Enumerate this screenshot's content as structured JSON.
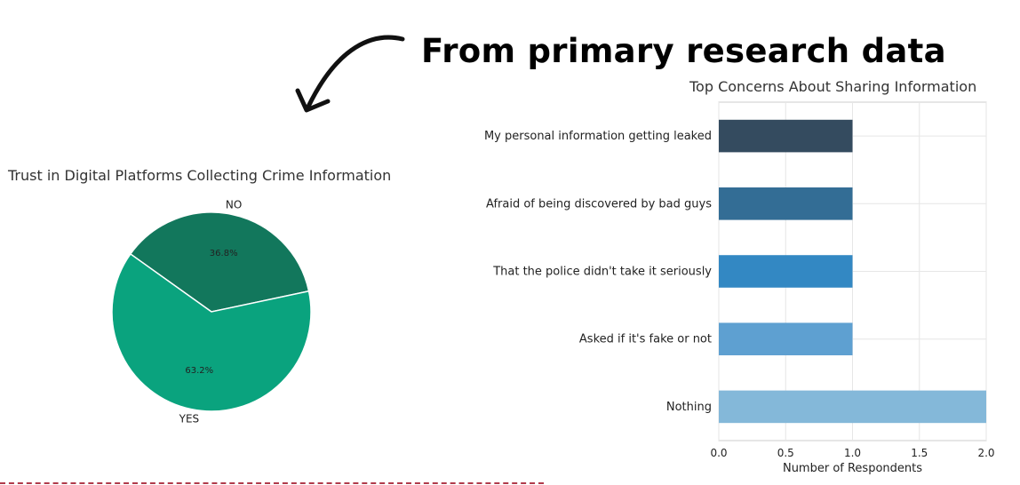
{
  "headline": "From primary research data",
  "colors": {
    "pie_no": "#12775c",
    "pie_yes": "#0aa37e",
    "bars": [
      "#344b5f",
      "#336d95",
      "#3388c3",
      "#5ea0d1",
      "#84b8d9"
    ]
  },
  "chart_data": [
    {
      "type": "pie",
      "title": "Trust in Digital Platforms Collecting Crime Information",
      "slices": [
        {
          "label": "NO",
          "value": 36.8,
          "pct_label": "36.8%"
        },
        {
          "label": "YES",
          "value": 63.2,
          "pct_label": "63.2%"
        }
      ]
    },
    {
      "type": "bar",
      "orientation": "horizontal",
      "title": "Top Concerns About Sharing Information",
      "categories": [
        "My personal information getting leaked",
        "Afraid of being discovered by bad guys",
        "That the police didn't take it seriously",
        "Asked if it's fake or not",
        "Nothing"
      ],
      "values": [
        1,
        1,
        1,
        1,
        2
      ],
      "xlabel": "Number of Respondents",
      "xlim": [
        0,
        2.0
      ],
      "xticks": [
        "0.0",
        "0.5",
        "1.0",
        "1.5",
        "2.0"
      ],
      "grid": true
    }
  ]
}
